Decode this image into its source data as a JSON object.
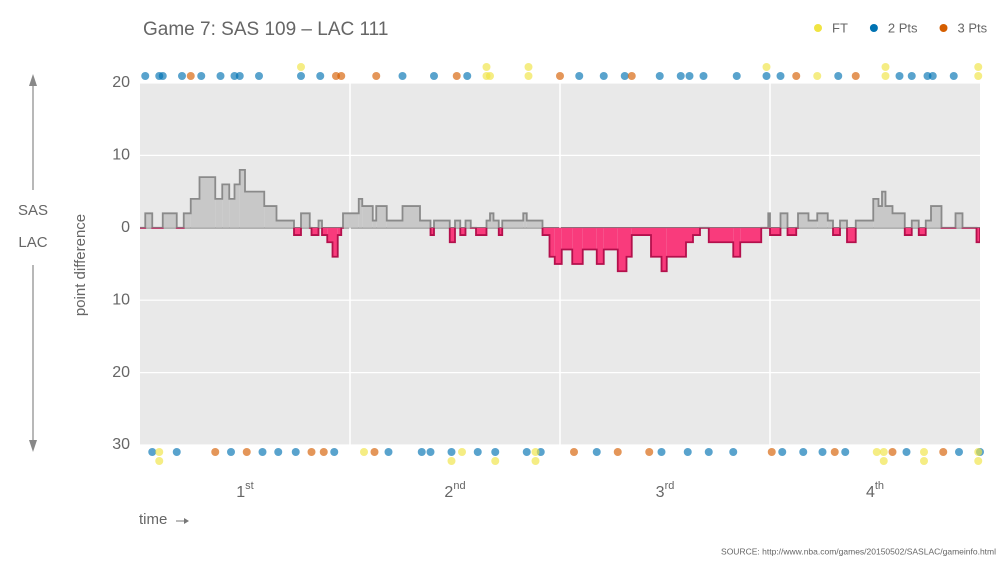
{
  "chart_data": {
    "type": "step",
    "title": "Game 7: SAS 109  –  LAC 111",
    "ylabel": "point difference",
    "xlabel": "time",
    "source": "SOURCE: http://www.nba.com/games/20150502/SASLAC/gameinfo.html",
    "upper_team": "SAS",
    "lower_team": "LAC",
    "xlim": [
      0,
      48
    ],
    "ylim": [
      -30,
      20
    ],
    "yticks": [
      20,
      10,
      0,
      {
        "value": -10,
        "label": "10"
      },
      {
        "value": -20,
        "label": "20"
      },
      {
        "value": -30,
        "label": "30"
      }
    ],
    "xgrid": [
      12,
      24,
      36
    ],
    "quarters": [
      {
        "value": 6,
        "label": "1",
        "sup": "st"
      },
      {
        "value": 18,
        "label": "2",
        "sup": "nd"
      },
      {
        "value": 30,
        "label": "3",
        "sup": "rd"
      },
      {
        "value": 42,
        "label": "4",
        "sup": "th"
      }
    ],
    "colors": {
      "positive": "#c8c8c8",
      "positive_line": "#8a8a8a",
      "negative": "#f93b7c",
      "negative_line": "#b3104c",
      "plot": "#e9e9e9"
    },
    "x": [
      0,
      0.3,
      0.7,
      1.3,
      2.1,
      2.5,
      2.9,
      3.4,
      4.3,
      4.7,
      5.1,
      5.4,
      5.7,
      6.0,
      7.1,
      7.8,
      8.8,
      9.2,
      9.7,
      9.8,
      10.2,
      10.4,
      10.7,
      11.0,
      11.3,
      11.5,
      11.6,
      12.5,
      12.7,
      13.3,
      13.5,
      14.1,
      15.0,
      16.0,
      16.6,
      16.8,
      17.7,
      18.0,
      18.3,
      18.6,
      18.9,
      19.2,
      19.8,
      20.0,
      20.2,
      20.5,
      20.7,
      21.9,
      22.1,
      23.0,
      23.4,
      23.7,
      24.1,
      24.7,
      25.3,
      26.1,
      26.5,
      27.3,
      27.8,
      28.1,
      29.2,
      29.8,
      30.1,
      31.2,
      31.6,
      32.0,
      32.5,
      33.9,
      34.3,
      35.5,
      35.9,
      36.0,
      36.6,
      37.0,
      37.5,
      37.6,
      38.2,
      38.7,
      39.3,
      39.6,
      40.0,
      40.4,
      40.9,
      41.9,
      42.2,
      42.4,
      42.6,
      43.0,
      43.7,
      44.1,
      44.5,
      44.9,
      45.2,
      45.8,
      46.6,
      47.0,
      47.8
    ],
    "values": [
      0,
      2,
      0,
      2,
      0,
      2,
      4,
      7,
      4,
      6,
      4,
      6,
      8,
      5,
      3,
      1,
      -1,
      2,
      0,
      -1,
      1,
      -1,
      -2,
      -4,
      -1,
      0,
      2,
      4,
      3,
      1,
      3,
      1,
      3,
      1,
      -1,
      1,
      -2,
      1,
      -1,
      1,
      0,
      -1,
      1,
      2,
      1,
      -1,
      1,
      2,
      1,
      -1,
      -4,
      -5,
      -3,
      -5,
      -3,
      -5,
      -3,
      -6,
      -4,
      -1,
      -4,
      -6,
      -4,
      -2,
      -1,
      0,
      -2,
      -4,
      -2,
      0,
      2,
      -1,
      2,
      -1,
      0,
      2,
      1,
      2,
      1,
      -1,
      1,
      -2,
      1,
      4,
      3,
      5,
      3,
      2,
      -1,
      1,
      -1,
      1,
      3,
      0,
      2,
      0,
      -2
    ],
    "scoring": [
      {
        "team": "SAS",
        "series": [
          {
            "name": "2 Pts",
            "color": "#0072b2",
            "x": [
              0.3,
              1.1,
              1.3,
              2.4,
              3.5,
              4.6,
              5.4,
              5.7,
              6.8,
              9.2,
              10.3,
              15.0,
              16.8,
              18.7,
              25.1,
              26.5,
              27.7,
              29.7,
              30.9,
              31.4,
              32.2,
              34.1,
              35.8,
              36.6,
              39.9,
              43.4,
              44.1,
              45.0,
              45.3,
              46.5
            ]
          },
          {
            "name": "3 Pts",
            "color": "#d55e00",
            "x": [
              2.9,
              11.2,
              11.5,
              13.5,
              18.1,
              24.0,
              28.1,
              37.5,
              40.9
            ]
          },
          {
            "name": "FT",
            "color": "#f0e442",
            "x": [
              9.2,
              19.8,
              19.8,
              20.0,
              22.2,
              22.2,
              35.8,
              38.7,
              42.6,
              42.6,
              47.9,
              47.9
            ]
          }
        ]
      },
      {
        "team": "LAC",
        "series": [
          {
            "name": "2 Pts",
            "color": "#0072b2",
            "x": [
              0.7,
              2.1,
              5.2,
              7.0,
              7.9,
              8.9,
              11.1,
              14.2,
              16.1,
              16.6,
              17.8,
              19.3,
              20.3,
              22.1,
              22.9,
              26.1,
              29.8,
              31.3,
              32.5,
              33.9,
              36.7,
              37.9,
              39.0,
              40.3,
              43.8,
              46.8,
              48.0
            ]
          },
          {
            "name": "3 Pts",
            "color": "#d55e00",
            "x": [
              4.3,
              6.1,
              9.8,
              10.5,
              13.4,
              24.8,
              27.3,
              29.1,
              36.1,
              39.7,
              43.0,
              45.9
            ]
          },
          {
            "name": "FT",
            "color": "#f0e442",
            "x": [
              1.1,
              1.1,
              12.8,
              17.8,
              18.4,
              20.3,
              22.6,
              22.6,
              42.1,
              42.5,
              42.5,
              44.8,
              44.8,
              47.9,
              47.9
            ]
          }
        ]
      }
    ],
    "legend": [
      "FT",
      "2 Pts",
      "3 Pts"
    ]
  }
}
